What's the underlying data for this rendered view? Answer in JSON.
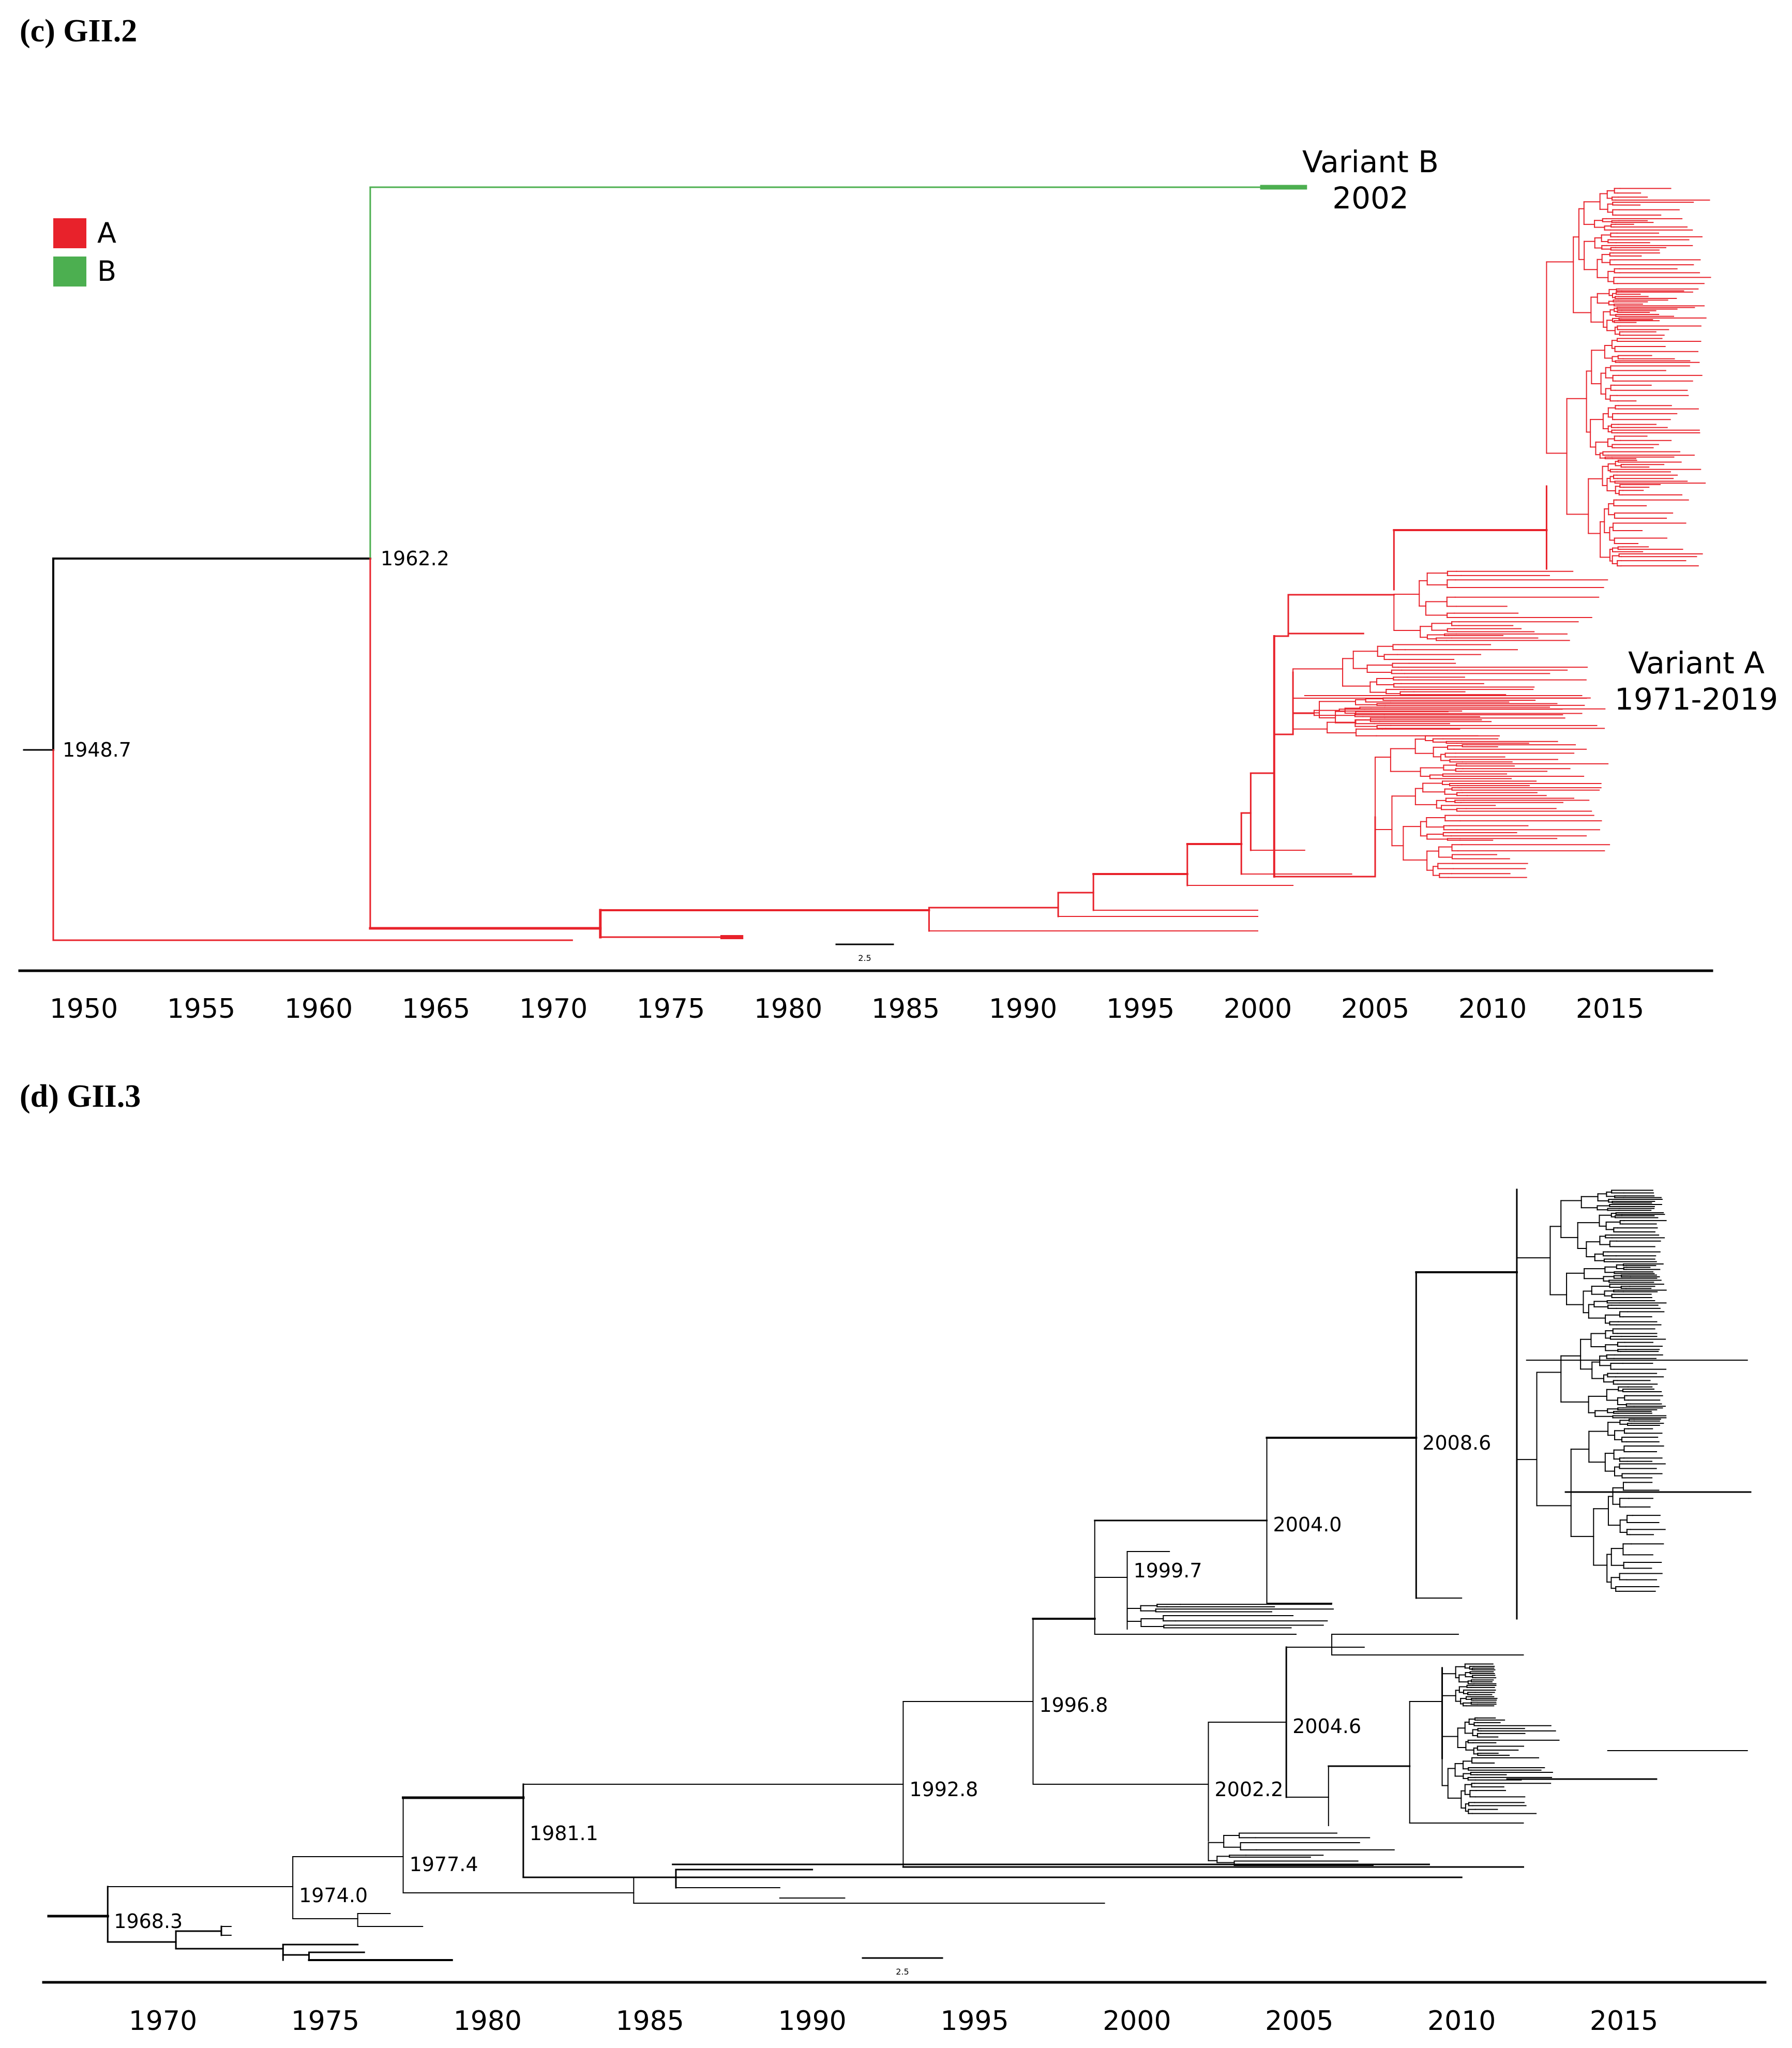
{
  "chart_data": [
    {
      "type": "phylogenetic-tree",
      "title": "(c) GII.2",
      "x_ticks": [
        1950,
        1955,
        1960,
        1965,
        1970,
        1975,
        1980,
        1985,
        1990,
        1995,
        2000,
        2005,
        2010,
        2015
      ],
      "xlim": [
        1947,
        2020
      ],
      "legend": {
        "position": "top-left",
        "items": [
          {
            "label": "A",
            "color": "#e8222b"
          },
          {
            "label": "B",
            "color": "#4caf50"
          }
        ]
      },
      "node_labels": [
        {
          "text": "1962.2",
          "year": 1962.2
        },
        {
          "text": "1948.7",
          "year": 1948.7
        }
      ],
      "annotations": [
        {
          "line1": "Variant B",
          "line2": "2002"
        },
        {
          "line1": "Variant A",
          "line2": "1971-2019"
        }
      ],
      "scale_bar_label": "2.5",
      "colors": {
        "variant_a": "#e8222b",
        "variant_b": "#4caf50",
        "root": "#000000"
      }
    },
    {
      "type": "phylogenetic-tree",
      "title": "(d) GII.3",
      "x_ticks": [
        1970,
        1975,
        1980,
        1985,
        1990,
        1995,
        2000,
        2005,
        2010,
        2015
      ],
      "xlim": [
        1966,
        2019
      ],
      "node_labels": [
        {
          "text": "2008.6",
          "year": 2008.6
        },
        {
          "text": "2004.0",
          "year": 2004.0
        },
        {
          "text": "1999.7",
          "year": 1999.7
        },
        {
          "text": "1996.8",
          "year": 1996.8
        },
        {
          "text": "2004.6",
          "year": 2004.6
        },
        {
          "text": "2002.2",
          "year": 2002.2
        },
        {
          "text": "1992.8",
          "year": 1992.8
        },
        {
          "text": "1981.1",
          "year": 1981.1
        },
        {
          "text": "1977.4",
          "year": 1977.4
        },
        {
          "text": "1974.0",
          "year": 1974.0
        },
        {
          "text": "1968.3",
          "year": 1968.3
        }
      ],
      "scale_bar_label": "2.5",
      "colors": {
        "branch": "#000000"
      }
    }
  ]
}
